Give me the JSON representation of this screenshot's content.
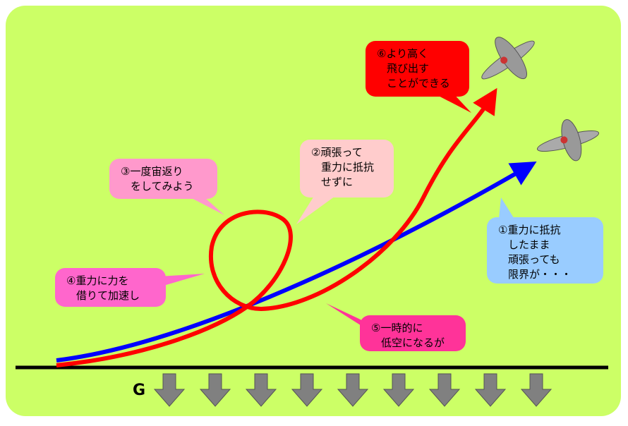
{
  "callouts": [
    {
      "lines": [
        "①重力に抵抗",
        "したまま",
        "頑張っても",
        "限界が・・・"
      ]
    },
    {
      "lines": [
        "②頑張って",
        "重力に抵抗",
        "せずに"
      ]
    },
    {
      "lines": [
        "③一度宙返り",
        "をしてみよう"
      ]
    },
    {
      "lines": [
        "④重力に力を",
        "借りて加速し"
      ]
    },
    {
      "lines": [
        "⑤一時的に",
        "低空になるが"
      ]
    },
    {
      "lines": [
        "⑥より高く",
        "飛び出す",
        "ことができる"
      ]
    }
  ],
  "gravity_label": "G"
}
